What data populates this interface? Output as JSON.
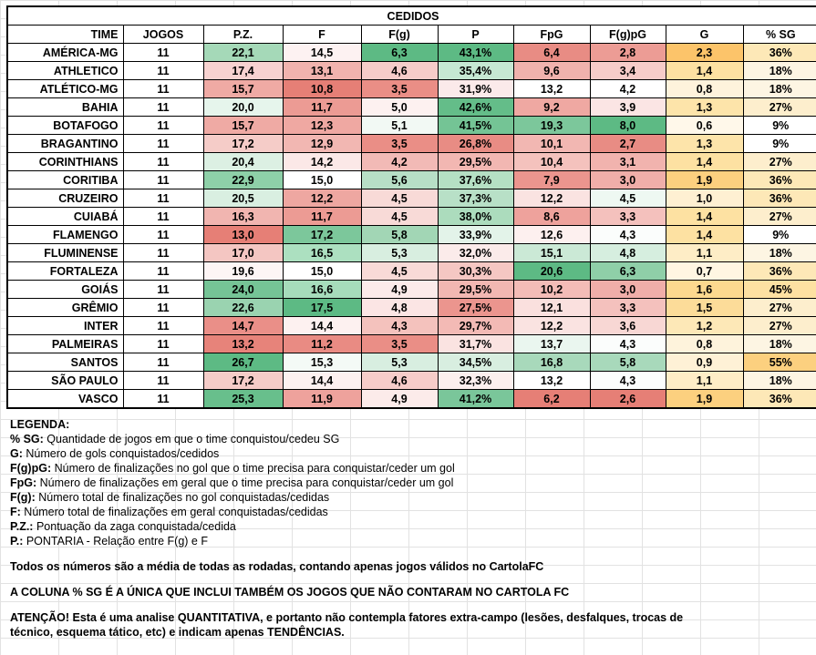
{
  "table": {
    "title": "CEDIDOS",
    "headers": [
      "TIME",
      "JOGOS",
      "P.Z.",
      "F",
      "F(g)",
      "P",
      "FpG",
      "F(g)pG",
      "G",
      "% SG"
    ],
    "rows": [
      {
        "team": "AMÉRICA-MG",
        "jogos": "11",
        "pz": "22,1",
        "f": "14,5",
        "fg": "6,3",
        "p": "43,1%",
        "fpg": "6,4",
        "fgpg": "2,8",
        "g": "2,3",
        "sg": "36%",
        "colors": {
          "pz": "#a5d9b8",
          "f": "#fdf2f2",
          "fg": "#5dba84",
          "p": "#5dba84",
          "fpg": "#e88c84",
          "fgpg": "#ec9c95",
          "g": "#fcc46a",
          "sg": "#fde8b7"
        }
      },
      {
        "team": "ATHLETICO",
        "jogos": "11",
        "pz": "17,4",
        "f": "13,1",
        "fg": "4,6",
        "p": "35,4%",
        "fpg": "9,6",
        "fgpg": "3,4",
        "g": "1,4",
        "sg": "18%",
        "colors": {
          "pz": "#f7d2d0",
          "f": "#f1b3ae",
          "fg": "#f6ccc9",
          "p": "#c6e8d3",
          "fpg": "#f0b2ad",
          "fgpg": "#f6ccc9",
          "g": "#fde1a2",
          "sg": "#fdf5e3"
        }
      },
      {
        "team": "ATLÉTICO-MG",
        "jogos": "11",
        "pz": "15,7",
        "f": "10,8",
        "fg": "3,5",
        "p": "31,9%",
        "fpg": "13,2",
        "fgpg": "4,2",
        "g": "0,8",
        "sg": "18%",
        "colors": {
          "pz": "#ef aaa4",
          "f": "#e67f76",
          "fg": "#ea8e86",
          "p": "#fbeaea",
          "fpg": "#ffffff",
          "fgpg": "#ffffff",
          "g": "#fef3dc",
          "sg": "#fdf5e3"
        }
      },
      {
        "team": "BAHIA",
        "jogos": "11",
        "pz": "20,0",
        "f": "11,7",
        "fg": "5,0",
        "p": "42,6%",
        "fpg": "9,2",
        "fgpg": "3,9",
        "g": "1,3",
        "sg": "27%",
        "colors": {
          "pz": "#e6f5ec",
          "f": "#ec9b94",
          "fg": "#fdf1f0",
          "p": "#64bd89",
          "fpg": "#efa8a2",
          "fgpg": "#fbe5e4",
          "g": "#fde4aa",
          "sg": "#fdeecd"
        }
      },
      {
        "team": "BOTAFOGO",
        "jogos": "11",
        "pz": "15,7",
        "f": "12,3",
        "fg": "5,1",
        "p": "41,5%",
        "fpg": "19,3",
        "fgpg": "8,0",
        "g": "0,6",
        "sg": "9%",
        "colors": {
          "pz": "#efaaa4",
          "f": "#efa8a2",
          "fg": "#f2f9f4",
          "p": "#74c495",
          "fpg": "#7cc79b",
          "fgpg": "#5dba84",
          "g": "#fff8ea",
          "sg": "#ffffff"
        }
      },
      {
        "team": "BRAGANTINO",
        "jogos": "11",
        "pz": "17,2",
        "f": "12,9",
        "fg": "3,5",
        "p": "26,8%",
        "fpg": "10,1",
        "fgpg": "2,7",
        "g": "1,3",
        "sg": "9%",
        "colors": {
          "pz": "#f5ccc8",
          "f": "#f2b7b2",
          "fg": "#ea8e86",
          "p": "#e88c84",
          "fpg": "#f2b7b2",
          "fgpg": "#e88c84",
          "g": "#fde4aa",
          "sg": "#ffffff"
        }
      },
      {
        "team": "CORINTHIANS",
        "jogos": "11",
        "pz": "20,4",
        "f": "14,2",
        "fg": "4,2",
        "p": "29,5%",
        "fpg": "10,4",
        "fgpg": "3,1",
        "g": "1,4",
        "sg": "27%",
        "colors": {
          "pz": "#dcf0e3",
          "f": "#fbe8e7",
          "fg": "#f2bab6",
          "p": "#f2b7b2",
          "fpg": "#f4c2bd",
          "fgpg": "#f1b3ae",
          "g": "#fde1a2",
          "sg": "#fdeecd"
        }
      },
      {
        "team": "CORITIBA",
        "jogos": "11",
        "pz": "22,9",
        "f": "15,0",
        "fg": "5,6",
        "p": "37,6%",
        "fpg": "7,9",
        "fgpg": "3,0",
        "g": "1,9",
        "sg": "36%",
        "colors": {
          "pz": "#8ed0a8",
          "f": "#ffffff",
          "fg": "#b7dfc6",
          "p": "#b5e0c4",
          "fpg": "#eb958e",
          "fgpg": "#f0aea9",
          "g": "#fcd07f",
          "sg": "#fde8b7"
        }
      },
      {
        "team": "CRUZEIRO",
        "jogos": "11",
        "pz": "20,5",
        "f": "12,2",
        "fg": "4,5",
        "p": "37,3%",
        "fpg": "12,2",
        "fgpg": "4,5",
        "g": "1,0",
        "sg": "36%",
        "colors": {
          "pz": "#d9efe1",
          "f": "#eea7a1",
          "fg": "#f8dad7",
          "p": "#b8e0c7",
          "fpg": "#fae3e1",
          "fgpg": "#eef8f2",
          "g": "#fef0d2",
          "sg": "#fde8b7"
        }
      },
      {
        "team": "CUIABÁ",
        "jogos": "11",
        "pz": "16,3",
        "f": "11,7",
        "fg": "4,5",
        "p": "38,0%",
        "fpg": "8,6",
        "fgpg": "3,3",
        "g": "1,4",
        "sg": "27%",
        "colors": {
          "pz": "#f1b5b0",
          "f": "#ec9b94",
          "fg": "#f8dad7",
          "p": "#acdcbd",
          "fpg": "#ee a29c",
          "fgpg": "#f4c1bd",
          "g": "#fde1a2",
          "sg": "#fdeecd"
        }
      },
      {
        "team": "FLAMENGO",
        "jogos": "11",
        "pz": "13,0",
        "f": "17,2",
        "fg": "5,8",
        "p": "33,9%",
        "fpg": "12,6",
        "fgpg": "4,3",
        "g": "1,4",
        "sg": "9%",
        "colors": {
          "pz": "#e67f76",
          "f": "#7cc79b",
          "fg": "#a2d6b5",
          "p": "#e3f3e9",
          "fpg": "#fdf0ef",
          "fgpg": "#fbfdfc",
          "g": "#fde1a2",
          "sg": "#ffffff"
        }
      },
      {
        "team": "FLUMINENSE",
        "jogos": "11",
        "pz": "17,0",
        "f": "16,5",
        "fg": "5,3",
        "p": "32,0%",
        "fpg": "15,1",
        "fgpg": "4,8",
        "g": "1,1",
        "sg": "18%",
        "colors": {
          "pz": "#f4c6c2",
          "f": "#ace0c0",
          "fg": "#d8eee0",
          "p": "#fbebea",
          "fpg": "#cbe9d6",
          "fgpg": "#d6eedf",
          "g": "#feedc6",
          "sg": "#fdf5e3"
        }
      },
      {
        "team": "FORTALEZA",
        "jogos": "11",
        "pz": "19,6",
        "f": "15,0",
        "fg": "4,5",
        "p": "30,3%",
        "fpg": "20,6",
        "fgpg": "6,3",
        "g": "0,7",
        "sg": "36%",
        "colors": {
          "pz": "#fdf5f5",
          "f": "#ffffff",
          "fg": "#f8dad7",
          "p": "#f5c7c3",
          "fpg": "#5dba84",
          "fgpg": "#8fcfa8",
          "g": "#fff6e2",
          "sg": "#fde8b7"
        }
      },
      {
        "team": "GOIÁS",
        "jogos": "11",
        "pz": "24,0",
        "f": "16,6",
        "fg": "4,9",
        "p": "29,5%",
        "fpg": "10,2",
        "fgpg": "3,0",
        "g": "1,6",
        "sg": "45%",
        "colors": {
          "pz": "#75c496",
          "f": "#a6dcbb",
          "fg": "#fcebea",
          "p": "#f2b7b2",
          "fpg": "#f3bcb7",
          "fgpg": "#f0aea9",
          "g": "#fcd98f",
          "sg": "#fde1a2"
        }
      },
      {
        "team": "GRÊMIO",
        "jogos": "11",
        "pz": "22,6",
        "f": "17,5",
        "fg": "4,8",
        "p": "27,5%",
        "fpg": "12,1",
        "fgpg": "3,3",
        "g": "1,5",
        "sg": "27%",
        "colors": {
          "pz": "#9ad3b0",
          "f": "#5dba84",
          "fg": "#fbe5e4",
          "p": "#eb958e",
          "fpg": "#fae0de",
          "fgpg": "#f4c1bd",
          "g": "#fcdc99",
          "sg": "#fdeecd"
        }
      },
      {
        "team": "INTER",
        "jogos": "11",
        "pz": "14,7",
        "f": "14,4",
        "fg": "4,3",
        "p": "29,7%",
        "fpg": "12,2",
        "fgpg": "3,6",
        "g": "1,2",
        "sg": "27%",
        "colors": {
          "pz": "#ea8f88",
          "f": "#fdf1f0",
          "fg": "#f4c2bd",
          "p": "#f3bab5",
          "fpg": "#fae3e1",
          "fgpg": "#f8d7d4",
          "g": "#fde8b7",
          "sg": "#fdeecd"
        }
      },
      {
        "team": "PALMEIRAS",
        "jogos": "11",
        "pz": "13,2",
        "f": "11,2",
        "fg": "3,5",
        "p": "31,7%",
        "fpg": "13,7",
        "fgpg": "4,3",
        "g": "0,8",
        "sg": "18%",
        "colors": {
          "pz": "#e7837a",
          "f": "#e98b83",
          "fg": "#ea8e86",
          "p": "#fae3e1",
          "fpg": "#eaf6ef",
          "fgpg": "#fbfdfc",
          "g": "#fef3dc",
          "sg": "#fdf5e3"
        }
      },
      {
        "team": "SANTOS",
        "jogos": "11",
        "pz": "26,7",
        "f": "15,3",
        "fg": "5,3",
        "p": "34,5%",
        "fpg": "16,8",
        "fgpg": "5,8",
        "g": "0,9",
        "sg": "55%",
        "colors": {
          "pz": "#5dba84",
          "f": "#f4faf6",
          "fg": "#d8eee0",
          "p": "#d8eee0",
          "fpg": "#a8d9bb",
          "fgpg": "#a8d9bb",
          "g": "#fef1d6",
          "sg": "#fcd07f"
        }
      },
      {
        "team": "SÃO PAULO",
        "jogos": "11",
        "pz": "17,2",
        "f": "14,4",
        "fg": "4,6",
        "p": "32,3%",
        "fpg": "13,2",
        "fgpg": "4,3",
        "g": "1,1",
        "sg": "18%",
        "colors": {
          "pz": "#f5ccc8",
          "f": "#fdf1f0",
          "fg": "#f6ccc9",
          "p": "#fcefee",
          "fpg": "#ffffff",
          "fgpg": "#fbfdfc",
          "g": "#feedc6",
          "sg": "#fdf5e3"
        }
      },
      {
        "team": "VASCO",
        "jogos": "11",
        "pz": "25,3",
        "f": "11,9",
        "fg": "4,9",
        "p": "41,2%",
        "fpg": "6,2",
        "fgpg": "2,6",
        "g": "1,9",
        "sg": "36%",
        "colors": {
          "pz": "#68bf8c",
          "f": "#ee a29c",
          "fg": "#fcebea",
          "p": "#7ac69a",
          "fpg": "#e67f76",
          "fgpg": "#e67f76",
          "g": "#fcd07f",
          "sg": "#fde8b7"
        }
      }
    ]
  },
  "legend": {
    "heading": "LEGENDA:",
    "items": [
      {
        "key": "% SG:",
        "text": " Quantidade de jogos em que o time conquistou/cedeu SG"
      },
      {
        "key": "G:",
        "text": " Número de gols conquistados/cedidos"
      },
      {
        "key": "F(g)pG:",
        "text": " Número de finalizações no gol que o time precisa para conquistar/ceder um gol"
      },
      {
        "key": "FpG:",
        "text": " Número de finalizações em geral que o time precisa para conquistar/ceder um gol"
      },
      {
        "key": "F(g):",
        "text": " Número total de finalizações no gol conquistadas/cedidas"
      },
      {
        "key": "F:",
        "text": " Número total de finalizações em geral conquistadas/cedidas"
      },
      {
        "key": "P.Z.:",
        "text": " Pontuação da zaga conquistada/cedida"
      },
      {
        "key": "P.:",
        "text": " PONTARIA - Relação entre F(g) e F"
      }
    ],
    "note1": "Todos os números são a média de todas as rodadas, contando apenas jogos válidos no CartolaFC",
    "note2": "A COLUNA % SG É A ÚNICA QUE INCLUI TAMBÉM OS JOGOS QUE NÃO CONTARAM NO CARTOLA FC",
    "note3a": "ATENÇÃO! Esta é uma analise QUANTITATIVA, e portanto não contempla fatores extra-campo (lesões, desfalques, trocas de",
    "note3b": "técnico, esquema tático, etc) e indicam apenas TENDÊNCIAS."
  }
}
